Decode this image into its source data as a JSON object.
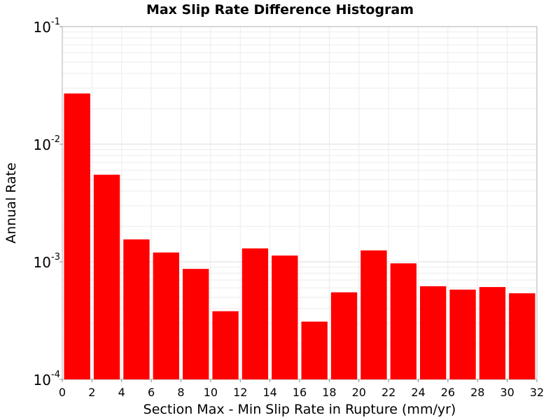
{
  "chart_data": {
    "type": "bar",
    "title": "Max Slip Rate Difference Histogram",
    "xlabel": "Section Max - Min Slip Rate in Rupture (mm/yr)",
    "ylabel": "Annual Rate",
    "xlim": [
      0,
      32
    ],
    "ylim": [
      0.0001,
      0.1
    ],
    "yscale": "log",
    "bin_width": 2,
    "x_ticks": [
      "0",
      "2",
      "4",
      "6",
      "8",
      "10",
      "12",
      "14",
      "16",
      "18",
      "20",
      "22",
      "24",
      "26",
      "28",
      "30",
      "32"
    ],
    "y_ticks": [
      {
        "base": "10",
        "exp": "-1"
      },
      {
        "base": "10",
        "exp": "-2"
      },
      {
        "base": "10",
        "exp": "-3"
      },
      {
        "base": "10",
        "exp": "-4"
      }
    ],
    "bins": [
      {
        "x": 1,
        "value": 0.027
      },
      {
        "x": 3,
        "value": 0.0055
      },
      {
        "x": 5,
        "value": 0.00155
      },
      {
        "x": 7,
        "value": 0.0012
      },
      {
        "x": 9,
        "value": 0.00087
      },
      {
        "x": 11,
        "value": 0.00038
      },
      {
        "x": 13,
        "value": 0.0013
      },
      {
        "x": 15,
        "value": 0.00113
      },
      {
        "x": 17,
        "value": 0.00031
      },
      {
        "x": 19,
        "value": 0.00055
      },
      {
        "x": 21,
        "value": 0.00125
      },
      {
        "x": 23,
        "value": 0.00097
      },
      {
        "x": 25,
        "value": 0.00062
      },
      {
        "x": 27,
        "value": 0.00058
      },
      {
        "x": 29,
        "value": 0.00061
      },
      {
        "x": 31,
        "value": 0.00054
      }
    ],
    "bar_color": "#ff0000",
    "grid": true
  }
}
